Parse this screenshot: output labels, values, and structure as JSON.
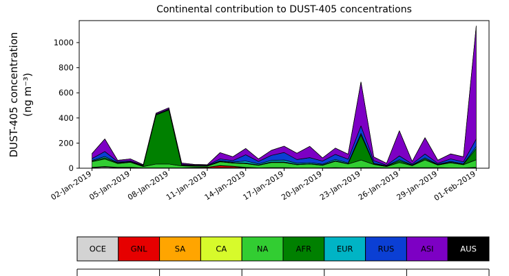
{
  "title": "Continental contribution to DUST-405 concentrations",
  "ylabel_line1": "DUST-405 concentration",
  "ylabel_line2": "(ng m⁻³)",
  "chart_data": {
    "type": "area",
    "stacked": true,
    "title": "Continental contribution to DUST-405 concentrations",
    "ylabel": "DUST-405 concentration (ng m⁻³)",
    "xlabel": "",
    "grid": false,
    "legend_position": "bottom",
    "xlim_days": [
      0,
      32
    ],
    "ylim": [
      0,
      1175
    ],
    "y_ticks": [
      0,
      200,
      400,
      600,
      800,
      1000
    ],
    "dates": [
      "02-Jan-2019",
      "03-Jan-2019",
      "04-Jan-2019",
      "05-Jan-2019",
      "06-Jan-2019",
      "07-Jan-2019",
      "08-Jan-2019",
      "09-Jan-2019",
      "10-Jan-2019",
      "11-Jan-2019",
      "12-Jan-2019",
      "13-Jan-2019",
      "14-Jan-2019",
      "15-Jan-2019",
      "16-Jan-2019",
      "17-Jan-2019",
      "18-Jan-2019",
      "19-Jan-2019",
      "20-Jan-2019",
      "21-Jan-2019",
      "22-Jan-2019",
      "23-Jan-2019",
      "24-Jan-2019",
      "25-Jan-2019",
      "26-Jan-2019",
      "27-Jan-2019",
      "28-Jan-2019",
      "29-Jan-2019",
      "30-Jan-2019",
      "31-Jan-2019",
      "01-Feb-2019"
    ],
    "x_tick_positions": [
      1,
      4,
      7,
      10,
      13,
      16,
      19,
      22,
      25,
      28,
      31
    ],
    "x_tick_labels": [
      "02-Jan-2019",
      "05-Jan-2019",
      "08-Jan-2019",
      "11-Jan-2019",
      "14-Jan-2019",
      "17-Jan-2019",
      "20-Jan-2019",
      "23-Jan-2019",
      "26-Jan-2019",
      "29-Jan-2019",
      "01-Feb-2019"
    ],
    "series": [
      {
        "name": "OCE",
        "color": "#d3d3d3",
        "values": [
          5,
          8,
          5,
          5,
          3,
          3,
          3,
          3,
          3,
          3,
          4,
          4,
          3,
          3,
          3,
          3,
          3,
          3,
          3,
          3,
          3,
          3,
          3,
          3,
          3,
          3,
          3,
          3,
          3,
          3,
          3
        ]
      },
      {
        "name": "GNL",
        "color": "#e60000",
        "values": [
          0,
          0,
          0,
          0,
          0,
          0,
          0,
          0,
          3,
          5,
          15,
          10,
          0,
          0,
          0,
          0,
          0,
          0,
          0,
          0,
          0,
          0,
          0,
          0,
          0,
          0,
          0,
          0,
          0,
          0,
          0
        ]
      },
      {
        "name": "SA",
        "color": "#ffa500",
        "values": [
          2,
          3,
          2,
          2,
          0,
          0,
          0,
          0,
          0,
          0,
          2,
          2,
          2,
          0,
          0,
          0,
          0,
          0,
          0,
          0,
          0,
          0,
          2,
          0,
          0,
          2,
          0,
          2,
          0,
          0,
          2
        ]
      },
      {
        "name": "CA",
        "color": "#d7fa2b",
        "values": [
          0,
          2,
          0,
          0,
          0,
          0,
          0,
          0,
          0,
          0,
          0,
          0,
          2,
          0,
          2,
          2,
          0,
          0,
          0,
          2,
          0,
          2,
          0,
          0,
          2,
          0,
          2,
          0,
          0,
          0,
          2
        ]
      },
      {
        "name": "NA",
        "color": "#32cd32",
        "values": [
          45,
          60,
          30,
          40,
          10,
          30,
          30,
          15,
          10,
          8,
          30,
          25,
          30,
          20,
          40,
          40,
          25,
          30,
          20,
          50,
          30,
          60,
          25,
          10,
          40,
          15,
          60,
          20,
          40,
          25,
          60
        ]
      },
      {
        "name": "AFR",
        "color": "#008000",
        "values": [
          5,
          10,
          5,
          3,
          5,
          390,
          430,
          5,
          3,
          2,
          3,
          3,
          5,
          3,
          5,
          5,
          3,
          3,
          3,
          5,
          3,
          200,
          5,
          3,
          15,
          3,
          10,
          3,
          5,
          3,
          90
        ]
      },
      {
        "name": "EUR",
        "color": "#00b4c5",
        "values": [
          5,
          10,
          3,
          3,
          2,
          2,
          3,
          3,
          2,
          2,
          5,
          5,
          15,
          8,
          12,
          15,
          8,
          8,
          6,
          10,
          6,
          12,
          5,
          3,
          8,
          3,
          8,
          3,
          6,
          5,
          15
        ]
      },
      {
        "name": "RUS",
        "color": "#0b3fd4",
        "values": [
          15,
          40,
          8,
          6,
          3,
          5,
          5,
          5,
          4,
          3,
          15,
          12,
          50,
          20,
          40,
          60,
          30,
          40,
          25,
          40,
          30,
          60,
          20,
          5,
          30,
          8,
          30,
          8,
          20,
          15,
          60
        ]
      },
      {
        "name": "ASI",
        "color": "#7d00c4",
        "values": [
          40,
          100,
          10,
          15,
          5,
          8,
          10,
          10,
          5,
          5,
          50,
          30,
          50,
          20,
          40,
          50,
          50,
          90,
          25,
          50,
          40,
          350,
          30,
          15,
          200,
          20,
          130,
          25,
          40,
          40,
          900
        ]
      },
      {
        "name": "AUS",
        "color": "#000000",
        "values": [
          0,
          0,
          0,
          0,
          0,
          0,
          0,
          0,
          0,
          0,
          0,
          0,
          0,
          0,
          0,
          0,
          0,
          0,
          0,
          0,
          0,
          0,
          0,
          0,
          0,
          0,
          0,
          0,
          0,
          0,
          0
        ]
      }
    ]
  },
  "legend": {
    "items": [
      {
        "label": "OCE",
        "color": "#d3d3d3",
        "text_color": "#000000"
      },
      {
        "label": "GNL",
        "color": "#e60000",
        "text_color": "#000000"
      },
      {
        "label": "SA",
        "color": "#ffa500",
        "text_color": "#000000"
      },
      {
        "label": "CA",
        "color": "#d7fa2b",
        "text_color": "#000000"
      },
      {
        "label": "NA",
        "color": "#32cd32",
        "text_color": "#000000"
      },
      {
        "label": "AFR",
        "color": "#008000",
        "text_color": "#000000"
      },
      {
        "label": "EUR",
        "color": "#00b4c5",
        "text_color": "#000000"
      },
      {
        "label": "RUS",
        "color": "#0b3fd4",
        "text_color": "#000000"
      },
      {
        "label": "ASI",
        "color": "#7d00c4",
        "text_color": "#000000"
      },
      {
        "label": "AUS",
        "color": "#000000",
        "text_color": "#ffffff"
      }
    ]
  }
}
